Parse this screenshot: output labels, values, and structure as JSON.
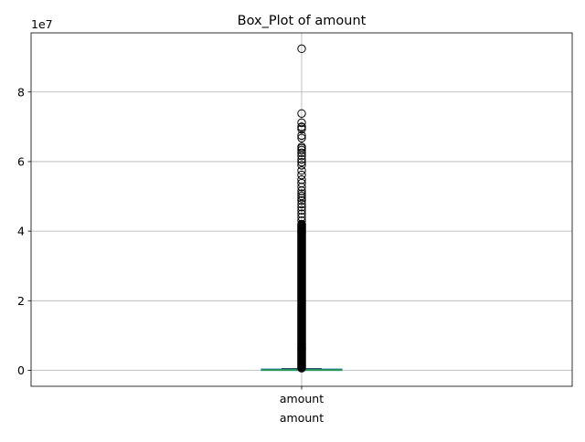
{
  "chart_data": {
    "type": "box",
    "title": "Box_Plot of amount",
    "xlabel": "amount",
    "ylabel": "",
    "categories": [
      "amount"
    ],
    "offset_label": "1e7",
    "ylim": [
      -4600000,
      97000000
    ],
    "y_ticks": [
      0,
      20000000,
      40000000,
      60000000,
      80000000
    ],
    "y_tick_labels": [
      "0",
      "2",
      "4",
      "6",
      "8"
    ],
    "grid": true,
    "legend": "none",
    "box": {
      "min": 0,
      "q1": 13400,
      "median": 75000,
      "q3": 208700,
      "whisker_high": 500000
    },
    "outliers": [
      92445517,
      73823490,
      71172480,
      70000000,
      69886731,
      69337316,
      67500761,
      66761272,
      64234448,
      63847992,
      63294839,
      62536413,
      61634322,
      60642003,
      59813030,
      58967451,
      57436714,
      56145122,
      54825618,
      53792121,
      52691488,
      51608374,
      50780226,
      50135711,
      49500000,
      48800000,
      47800000,
      46900000,
      46000000,
      45000000,
      44000000,
      43000000,
      42000000
    ],
    "outlier_band_high": 42000000,
    "outlier_band_low": 600000,
    "colors": {
      "box": "#1f77b4",
      "median": "#2ca02c",
      "whisker": "#000000",
      "outlier_edge": "#000000",
      "grid": "#b0b0b0",
      "axes": "#000000"
    }
  }
}
